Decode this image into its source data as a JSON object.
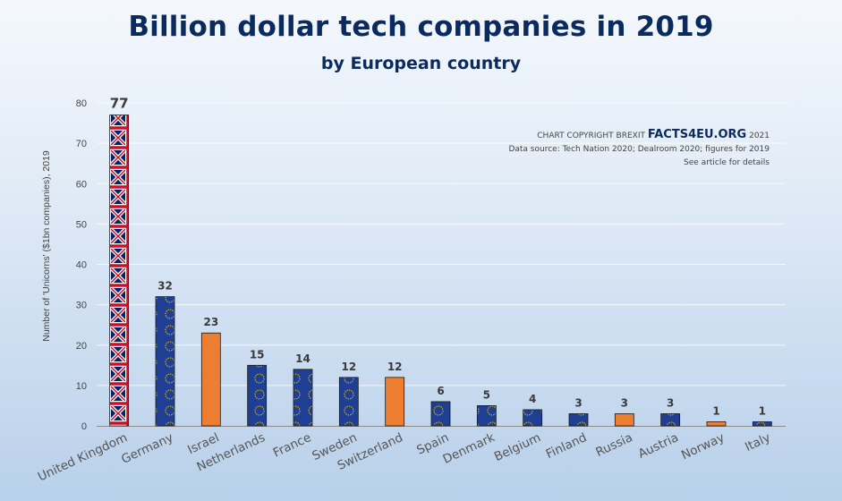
{
  "chart_data": {
    "type": "bar",
    "title": "Billion dollar tech companies in 2019",
    "subtitle": "by European country",
    "ylabel": "Number of 'Unicorns' ($1bn companies), 2019",
    "xlabel": "",
    "ylim": [
      0,
      80
    ],
    "yticks": [
      0,
      10,
      20,
      30,
      40,
      50,
      60,
      70,
      80
    ],
    "grid": true,
    "categories": [
      "United Kingdom",
      "Germany",
      "Israel",
      "Netherlands",
      "France",
      "Sweden",
      "Switzerland",
      "Spain",
      "Denmark",
      "Belgium",
      "Finland",
      "Russia",
      "Austria",
      "Norway",
      "Italy"
    ],
    "values": [
      77,
      32,
      23,
      15,
      14,
      12,
      12,
      6,
      5,
      4,
      3,
      3,
      3,
      1,
      1
    ],
    "bar_styles": [
      "uk",
      "eu",
      "other",
      "eu",
      "eu",
      "eu",
      "other",
      "eu",
      "eu",
      "eu",
      "eu",
      "other",
      "eu",
      "other",
      "eu"
    ],
    "colors": {
      "eu": "#1f3f95",
      "eu_star": "#f3c400",
      "other": "#ed7d31",
      "uk_red": "#c8102e",
      "uk_blue": "#012169"
    }
  },
  "credit": {
    "prefix": "CHART COPYRIGHT BREXIT",
    "brand": "FACTS4EU.ORG",
    "year": "2021",
    "source": "Data source: Tech Nation 2020; Dealroom 2020; figures for 2019",
    "note": "See article for details"
  }
}
